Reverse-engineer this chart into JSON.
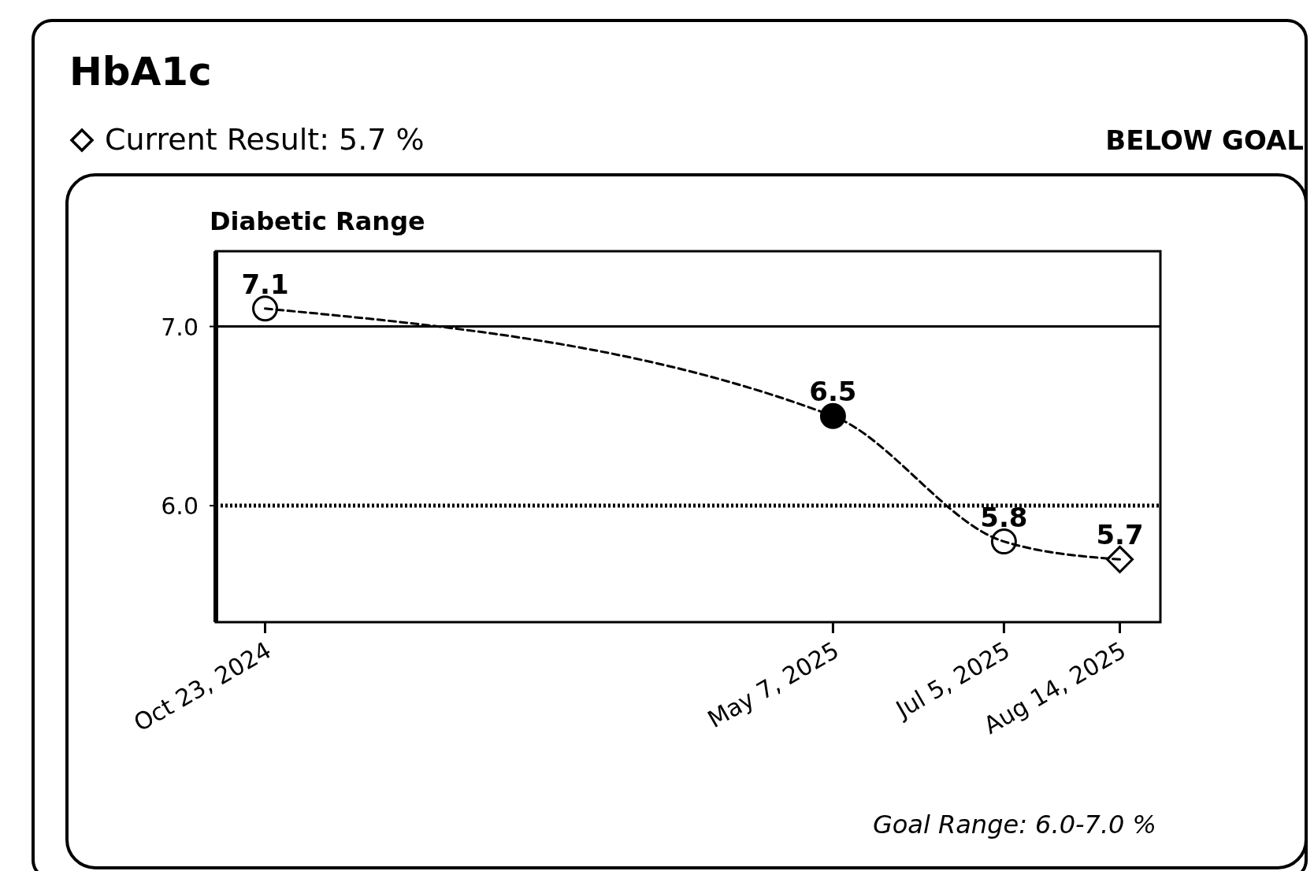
{
  "chart_data": {
    "type": "line",
    "title": "HbA1c",
    "subtitle": "Current Result: 5.7 %",
    "annotations": [
      "BELOW GOAL",
      "Diabetic Range",
      "Goal Range: 6.0-7.0 %"
    ],
    "x": [
      "2024-10-23",
      "2025-05-07",
      "2025-07-05",
      "2025-08-14"
    ],
    "series": [
      {
        "type": "line",
        "color": "#000000",
        "values": [
          7.1,
          6.5,
          5.8,
          5.7
        ],
        "line_style": "dashed",
        "marker": "none"
      },
      {
        "type": "scatter",
        "color": "#ffffff",
        "values": [
          7.1,
          null,
          5.8,
          null
        ],
        "value_labels": [
          "7.1",
          null,
          "5.8",
          null
        ],
        "marker": "circle"
      },
      {
        "type": "scatter",
        "color": "#000000",
        "values": [
          null,
          6.5,
          null,
          null
        ],
        "value_labels": [
          null,
          "6.5",
          null,
          null
        ],
        "marker": "circle"
      },
      {
        "type": "scatter",
        "color": "#ffffff",
        "values": [
          null,
          null,
          null,
          5.7
        ],
        "value_labels": [
          null,
          null,
          null,
          "5.7"
        ],
        "marker": "diamond"
      }
    ],
    "xlim": [
      "2024-10-06",
      "2025-08-28"
    ],
    "xticks": [
      {
        "value": "2024-10-23",
        "label": "Oct 23, 2024"
      },
      {
        "value": "2025-05-07",
        "label": "May 7, 2025"
      },
      {
        "value": "2025-07-05",
        "label": "Jul 5, 2025"
      },
      {
        "value": "2025-08-14",
        "label": "Aug 14, 2025"
      }
    ],
    "ylim": [
      5.35,
      7.42
    ],
    "yticks": [
      {
        "value": 6,
        "label": "6.0"
      },
      {
        "value": 7,
        "label": "7.0"
      }
    ],
    "ref_lines": [
      {
        "axis": "y",
        "value": 7,
        "line_style": "solid"
      },
      {
        "axis": "y",
        "value": 6,
        "line_style": "dotted"
      }
    ],
    "grid": false,
    "legend": false
  }
}
